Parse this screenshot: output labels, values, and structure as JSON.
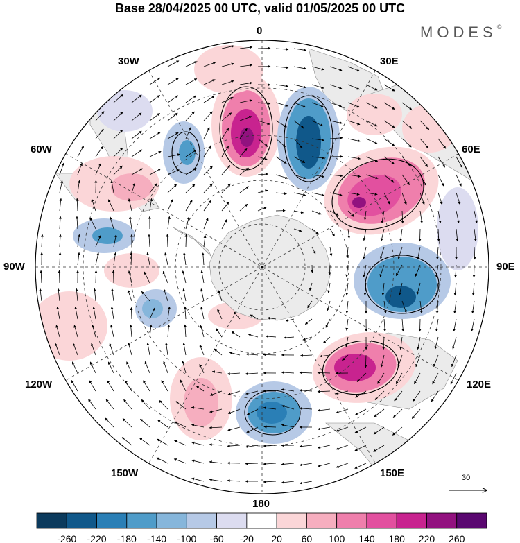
{
  "title": "Base 28/04/2025 00 UTC, valid 01/05/2025 00 UTC",
  "brand": "MODES",
  "brand_mark": "©",
  "longitude_labels": [
    "0",
    "30E",
    "60E",
    "90E",
    "120E",
    "150E",
    "180",
    "150W",
    "120W",
    "90W",
    "60W",
    "30W"
  ],
  "reference_vector_label": "30",
  "colorbar": {
    "ticks": [
      "-260",
      "-220",
      "-180",
      "-140",
      "-100",
      "-60",
      "-20",
      "20",
      "60",
      "100",
      "140",
      "180",
      "220",
      "260"
    ],
    "colors": [
      "#0b3a5c",
      "#10588a",
      "#2a7fb6",
      "#4f9cc9",
      "#86b6db",
      "#b6c9e6",
      "#dcdcf0",
      "#ffffff",
      "#fbd6d8",
      "#f6aebf",
      "#ef7fac",
      "#e2509f",
      "#c8238f",
      "#92117f",
      "#5a0770"
    ]
  },
  "colors": {
    "land": "#ebebeb",
    "negative_core": "#10588a",
    "positive_core": "#c8238f"
  }
}
